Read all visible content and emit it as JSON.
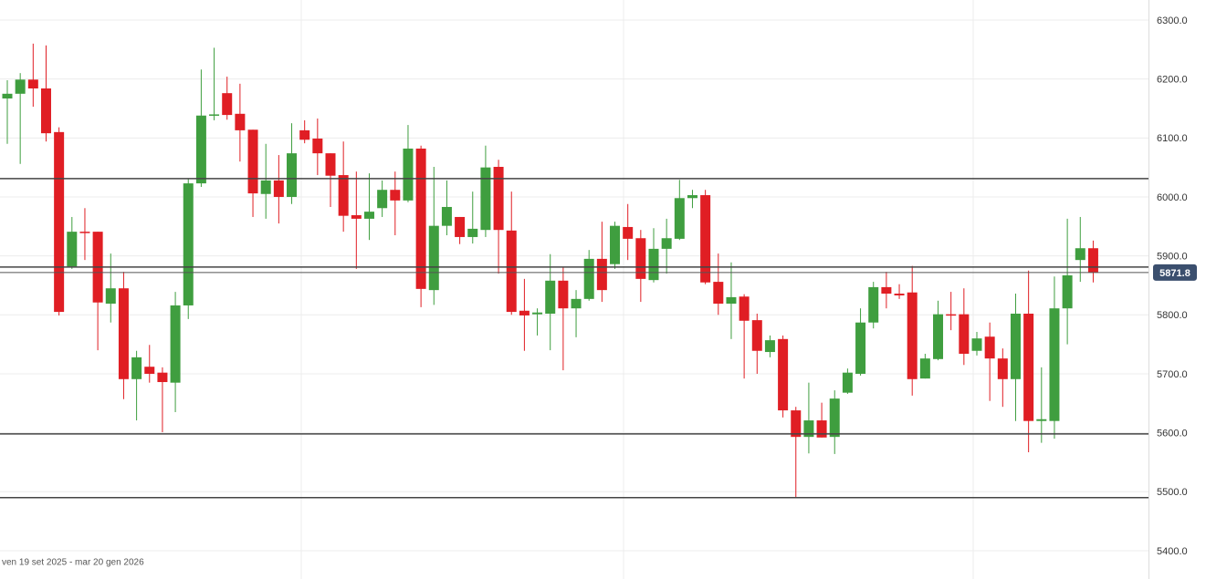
{
  "chart_data": {
    "type": "candlestick",
    "footer": "ven 19 set 2025 - mar 20 gen 2026",
    "up_color": "#3f9e3f",
    "down_color": "#e01e24",
    "open": [
      6167,
      6175,
      6199,
      6184,
      6110,
      5882,
      5941,
      5941,
      5819,
      5845,
      5691,
      5712,
      5702,
      5685,
      5816,
      6023,
      6138,
      6176,
      6141,
      6114,
      6005,
      6028,
      6000,
      6113,
      6099,
      6074,
      6037,
      5969,
      5963,
      5981,
      6012,
      5994,
      6082,
      5842,
      5951,
      5966,
      5932,
      5944,
      6051,
      5943,
      5807,
      5801,
      5802,
      5858,
      5811,
      5827,
      5895,
      5886,
      5949,
      5930,
      5859,
      5912,
      5929,
      5998,
      6003,
      5856,
      5819,
      5831,
      5791,
      5737,
      5759,
      5638,
      5593,
      5621,
      5593,
      5668,
      5700,
      5787,
      5847,
      5836,
      5838,
      5692,
      5725,
      5801,
      5801,
      5739,
      5763,
      5726,
      5691,
      5802,
      5620,
      5620,
      5811,
      5893,
      5913
    ],
    "high": [
      6198,
      6210,
      6260,
      6257,
      6118,
      5966,
      5981,
      5941,
      5904,
      5873,
      5739,
      5749,
      5711,
      5839,
      6031,
      6216,
      6253,
      6204,
      6192,
      6114,
      6090,
      6071,
      6125,
      6130,
      6133,
      6074,
      6094,
      6043,
      6040,
      6028,
      6043,
      6122,
      6087,
      6051,
      6028,
      5966,
      6009,
      6087,
      6063,
      6009,
      5861,
      5811,
      5903,
      5881,
      5842,
      5910,
      5958,
      5958,
      5988,
      5944,
      5947,
      5963,
      6029,
      6012,
      6012,
      5904,
      5889,
      5835,
      5802,
      5765,
      5765,
      5644,
      5685,
      5651,
      5672,
      5709,
      5811,
      5856,
      5873,
      5852,
      5883,
      5734,
      5824,
      5839,
      5845,
      5771,
      5787,
      5743,
      5836,
      5875,
      5711,
      5865,
      5963,
      5966,
      5926
    ],
    "low": [
      6090,
      6056,
      6153,
      6094,
      5799,
      5878,
      5893,
      5740,
      5787,
      5657,
      5621,
      5685,
      5601,
      5635,
      5793,
      6017,
      6130,
      6131,
      6060,
      5966,
      5963,
      5955,
      5988,
      6091,
      6037,
      5983,
      5941,
      5878,
      5927,
      5966,
      5935,
      5991,
      5813,
      5817,
      5935,
      5920,
      5921,
      5932,
      5870,
      5800,
      5739,
      5765,
      5740,
      5706,
      5762,
      5824,
      5822,
      5878,
      5893,
      5822,
      5855,
      5870,
      5927,
      5981,
      5852,
      5800,
      5759,
      5692,
      5700,
      5728,
      5626,
      5490,
      5565,
      5592,
      5564,
      5666,
      5697,
      5777,
      5811,
      5827,
      5663,
      5692,
      5723,
      5774,
      5715,
      5731,
      5654,
      5644,
      5620,
      5567,
      5583,
      5590,
      5750,
      5856,
      5855
    ],
    "close": [
      6175,
      6199,
      6184,
      6108,
      5805,
      5941,
      5939,
      5821,
      5845,
      5691,
      5728,
      5700,
      5686,
      5816,
      6023,
      6138,
      6140,
      6139,
      6113,
      6006,
      6028,
      6000,
      6074,
      6097,
      6074,
      6036,
      5968,
      5963,
      5975,
      6012,
      5994,
      6082,
      5844,
      5951,
      5983,
      5932,
      5946,
      6050,
      5944,
      5805,
      5799,
      5804,
      5858,
      5811,
      5827,
      5895,
      5842,
      5951,
      5929,
      5861,
      5912,
      5930,
      5998,
      6003,
      5855,
      5819,
      5830,
      5790,
      5739,
      5757,
      5638,
      5593,
      5621,
      5592,
      5658,
      5702,
      5787,
      5847,
      5836,
      5833,
      5691,
      5726,
      5801,
      5799,
      5734,
      5760,
      5726,
      5691,
      5802,
      5620,
      5623,
      5811,
      5867,
      5913,
      5872
    ],
    "hlines": [
      6031,
      5881,
      5598,
      5490
    ],
    "last_price": {
      "value": 5871.8,
      "label": "5871.8"
    },
    "ylim": [
      5352,
      6334
    ],
    "yticks": [
      {
        "value": 5400,
        "label": "5400.0"
      },
      {
        "value": 5500,
        "label": "5500.0"
      },
      {
        "value": 5600,
        "label": "5600.0"
      },
      {
        "value": 5700,
        "label": "5700.0"
      },
      {
        "value": 5800,
        "label": "5800.0"
      },
      {
        "value": 5900,
        "label": "5900.0"
      },
      {
        "value": 6000,
        "label": "6000.0"
      },
      {
        "value": 6100,
        "label": "6100.0"
      },
      {
        "value": 6200,
        "label": "6200.0"
      },
      {
        "value": 6300,
        "label": "6300.0"
      }
    ],
    "grid": true
  }
}
